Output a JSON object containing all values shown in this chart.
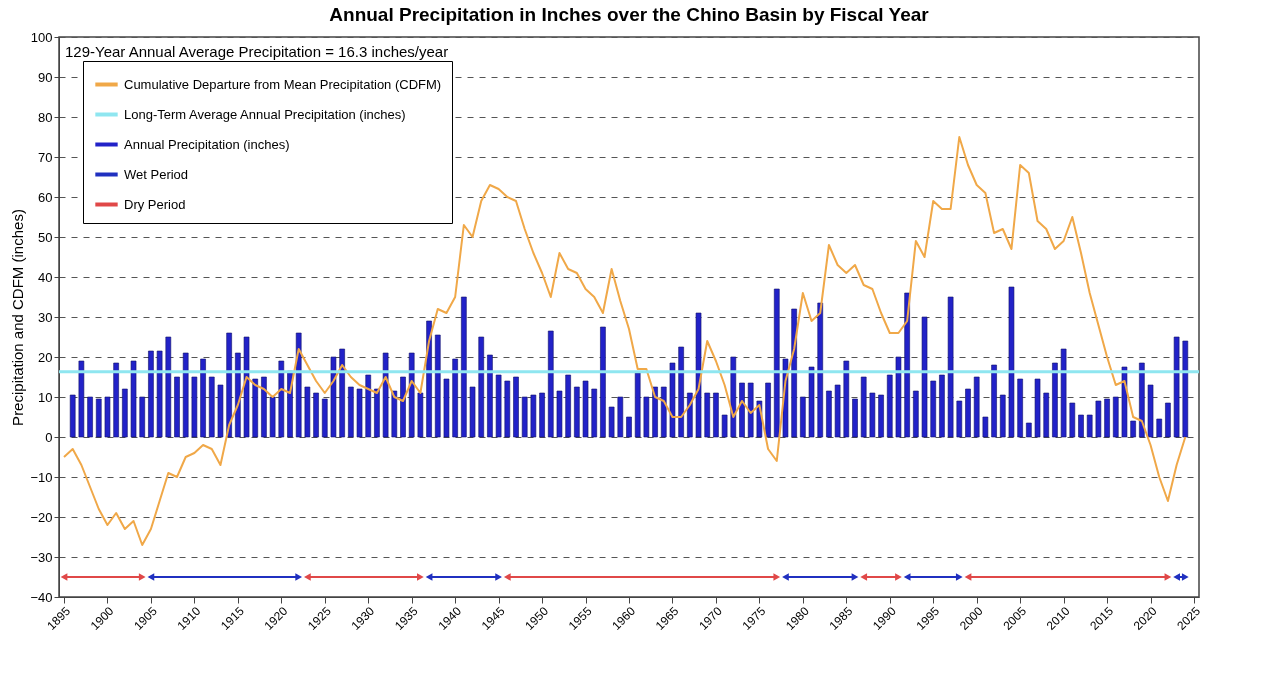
{
  "chart_data": {
    "type": "bar",
    "title": "Annual Precipitation in Inches over the Chino Basin by Fiscal Year",
    "ylabel": "Precipitation and CDFM (inches)",
    "annotations": [
      "129-Year Annual Average Precipitation = 16.3 inches/year"
    ],
    "xlim": [
      1895,
      2025
    ],
    "xticks": [
      1895,
      1900,
      1905,
      1910,
      1915,
      1920,
      1925,
      1930,
      1935,
      1940,
      1945,
      1950,
      1955,
      1960,
      1965,
      1970,
      1975,
      1980,
      1985,
      1990,
      1995,
      2000,
      2005,
      2010,
      2015,
      2020,
      2025
    ],
    "ylim": [
      -40,
      100
    ],
    "yticks": [
      -40,
      -30,
      -20,
      -10,
      0,
      10,
      20,
      30,
      40,
      50,
      60,
      70,
      80,
      90,
      100
    ],
    "grid": "y",
    "legend": "top left",
    "ref_lines": [
      {
        "axis": "y",
        "value": 16.3,
        "label": "Long-Term Average Annual Precipitation (inches)",
        "color": "#8fe6f0"
      }
    ],
    "series": [
      {
        "name": "Cumulative Departure from Mean Precipitation (CDFM)",
        "type": "line",
        "color": "#f0a848",
        "x": [
          1895,
          1896,
          1897,
          1899,
          1900,
          1901,
          1902,
          1903,
          1904,
          1905,
          1906,
          1907,
          1908,
          1909,
          1910,
          1911,
          1912,
          1913,
          1914,
          1915,
          1916,
          1917,
          1918,
          1919,
          1920,
          1921,
          1922,
          1923,
          1924,
          1925,
          1926,
          1927,
          1928,
          1929,
          1930,
          1931,
          1932,
          1933,
          1934,
          1935,
          1936,
          1937,
          1938,
          1939,
          1940,
          1941,
          1942,
          1943,
          1944,
          1945,
          1946,
          1947,
          1948,
          1949,
          1950,
          1951,
          1952,
          1953,
          1954,
          1955,
          1956,
          1957,
          1958,
          1959,
          1960,
          1961,
          1962,
          1963,
          1964,
          1965,
          1966,
          1967,
          1968,
          1969,
          1970,
          1971,
          1972,
          1973,
          1974,
          1975,
          1976,
          1977,
          1978,
          1979,
          1980,
          1981,
          1982,
          1983,
          1984,
          1985,
          1986,
          1987,
          1988,
          1989,
          1990,
          1991,
          1992,
          1993,
          1994,
          1995,
          1996,
          1997,
          1998,
          1999,
          2000,
          2001,
          2002,
          2003,
          2004,
          2005,
          2006,
          2007,
          2008,
          2009,
          2010,
          2011,
          2012,
          2013,
          2014,
          2015,
          2016,
          2017,
          2018,
          2019,
          2020,
          2021,
          2022,
          2023,
          2024
        ],
        "values": [
          -5,
          -3,
          -7,
          -18,
          -22,
          -19,
          -23,
          -21,
          -27,
          -23,
          -16,
          -9,
          -10,
          -5,
          -4,
          -2,
          -3,
          -7,
          3,
          8,
          15,
          13,
          12,
          10,
          12,
          11,
          22,
          18,
          14,
          11,
          14,
          18,
          15,
          13,
          12,
          11,
          15,
          10,
          9,
          14,
          11,
          24,
          32,
          31,
          35,
          53,
          50,
          59,
          63,
          62,
          60,
          59,
          52,
          46,
          41,
          35,
          46,
          42,
          41,
          37,
          35,
          31,
          42,
          34,
          27,
          17,
          17,
          10,
          9,
          5,
          5,
          8,
          12,
          24,
          19,
          13,
          5,
          9,
          6,
          8,
          -3,
          -6,
          14,
          22,
          36,
          29,
          31,
          48,
          43,
          41,
          43,
          38,
          37,
          31,
          26,
          26,
          29,
          49,
          45,
          59,
          57,
          57,
          75,
          68,
          63,
          61,
          51,
          52,
          47,
          68,
          66,
          54,
          52,
          47,
          49,
          55,
          46,
          36,
          28,
          20,
          13,
          14,
          5,
          4,
          -2,
          -10,
          -16,
          -7,
          0
        ]
      },
      {
        "name": "Annual Precipitation (inches)",
        "type": "bar",
        "color": "#2222c8",
        "x": [
          1896,
          1897,
          1898,
          1899,
          1900,
          1901,
          1902,
          1903,
          1904,
          1905,
          1906,
          1907,
          1908,
          1909,
          1910,
          1911,
          1912,
          1913,
          1914,
          1915,
          1916,
          1917,
          1918,
          1919,
          1920,
          1921,
          1922,
          1923,
          1924,
          1925,
          1926,
          1927,
          1928,
          1929,
          1930,
          1931,
          1932,
          1933,
          1934,
          1935,
          1936,
          1937,
          1938,
          1939,
          1940,
          1941,
          1942,
          1943,
          1944,
          1945,
          1946,
          1947,
          1948,
          1949,
          1950,
          1951,
          1952,
          1953,
          1954,
          1955,
          1956,
          1957,
          1958,
          1959,
          1960,
          1961,
          1962,
          1963,
          1964,
          1965,
          1966,
          1967,
          1968,
          1969,
          1970,
          1971,
          1972,
          1973,
          1974,
          1975,
          1976,
          1977,
          1978,
          1979,
          1980,
          1981,
          1982,
          1983,
          1984,
          1985,
          1986,
          1987,
          1988,
          1989,
          1990,
          1991,
          1992,
          1993,
          1994,
          1995,
          1996,
          1997,
          1998,
          1999,
          2000,
          2001,
          2002,
          2003,
          2004,
          2005,
          2006,
          2007,
          2008,
          2009,
          2010,
          2011,
          2012,
          2013,
          2014,
          2015,
          2016,
          2017,
          2018,
          2019,
          2020,
          2021,
          2022,
          2023,
          2024
        ],
        "values": [
          10.5,
          19,
          10,
          9.5,
          10,
          18.5,
          12,
          19,
          10,
          21.5,
          21.5,
          25,
          15,
          21,
          15,
          19.5,
          15,
          13,
          26,
          21,
          25,
          14.5,
          15,
          10,
          19,
          16.5,
          26,
          12.5,
          11,
          9.5,
          20,
          22,
          12.5,
          12,
          15.5,
          12,
          21,
          11.5,
          15,
          21,
          11,
          29,
          25.5,
          14.5,
          19.5,
          35,
          12.5,
          25,
          20.5,
          15.5,
          14,
          15,
          10,
          10.5,
          11,
          26.5,
          11.5,
          15.5,
          12.5,
          14,
          12,
          27.5,
          7.5,
          10,
          5,
          16,
          10,
          12.5,
          12.5,
          18.5,
          22.5,
          11,
          31,
          11,
          11,
          5.5,
          20,
          13.5,
          13.5,
          9,
          13.5,
          37,
          19.5,
          32,
          10,
          17.5,
          33.5,
          11.5,
          13,
          19,
          9.5,
          15,
          11,
          10.5,
          15.5,
          20,
          36,
          11.5,
          30,
          14,
          15.5,
          35,
          9,
          12,
          15,
          5,
          18,
          10.5,
          37.5,
          14.5,
          3.5,
          14.5,
          11,
          18.5,
          22,
          8.5,
          5.5,
          5.5,
          9,
          9.5,
          10,
          17.5,
          4,
          18.5,
          13,
          4.5,
          8.5,
          25,
          24
        ]
      },
      {
        "name": "Wet Period",
        "type": "line",
        "color": "#2030c0",
        "marker": "triangle",
        "x": [
          1905,
          1922,
          null,
          1937,
          1945,
          null,
          1978,
          1986,
          null,
          1992,
          1998,
          null,
          2023,
          2024
        ],
        "values": [
          -35,
          -35,
          null,
          -35,
          -35,
          null,
          -35,
          -35,
          null,
          -35,
          -35,
          null,
          -35,
          -35
        ]
      },
      {
        "name": "Dry Period",
        "type": "line",
        "color": "#e04848",
        "marker": "triangle",
        "x": [
          1895,
          1904,
          null,
          1923,
          1936,
          null,
          1946,
          1977,
          null,
          1987,
          1991,
          null,
          1999,
          2022
        ],
        "values": [
          -35,
          -35,
          null,
          -35,
          -35,
          null,
          -35,
          -35,
          null,
          -35,
          -35,
          null,
          -35,
          -35
        ]
      }
    ]
  }
}
